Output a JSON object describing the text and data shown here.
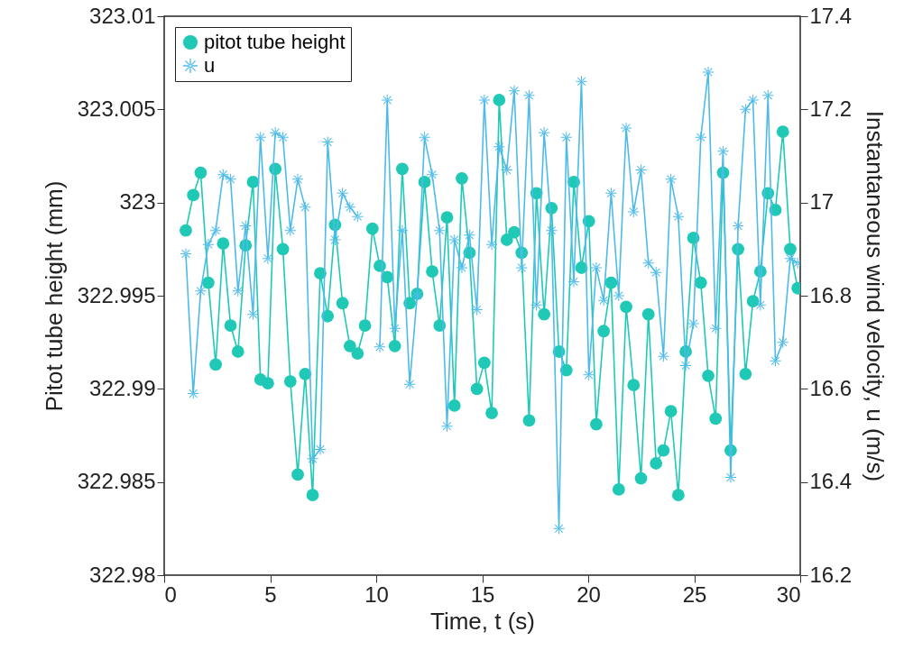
{
  "chart_data": {
    "type": "line",
    "xlabel": "Time, t (s)",
    "ylabel": "Pitot tube height (mm)",
    "y2label": "Instantaneous wind velocity, u (m/s)",
    "xlim": [
      0,
      30
    ],
    "xticks": [
      0,
      5,
      10,
      15,
      20,
      25,
      30
    ],
    "ylim": [
      322.98,
      323.01
    ],
    "yticks": [
      322.98,
      322.985,
      322.99,
      322.995,
      323,
      323.005,
      323.01
    ],
    "y2lim": [
      16.2,
      17.4
    ],
    "y2ticks": [
      16.2,
      16.4,
      16.6,
      16.8,
      17,
      17.2,
      17.4
    ],
    "grid": false,
    "legend": "top left",
    "x": [
      1.02,
      1.37,
      1.72,
      2.08,
      2.43,
      2.78,
      3.13,
      3.48,
      3.84,
      4.19,
      4.54,
      4.89,
      5.24,
      5.6,
      5.95,
      6.3,
      6.65,
      7.0,
      7.36,
      7.71,
      8.06,
      8.41,
      8.76,
      9.12,
      9.47,
      9.82,
      10.17,
      10.52,
      10.88,
      11.23,
      11.58,
      11.93,
      12.28,
      12.64,
      12.99,
      13.34,
      13.69,
      14.04,
      14.4,
      14.75,
      15.1,
      15.45,
      15.8,
      16.16,
      16.51,
      16.86,
      17.21,
      17.56,
      17.92,
      18.27,
      18.62,
      18.97,
      19.32,
      19.68,
      20.03,
      20.38,
      20.73,
      21.08,
      21.44,
      21.79,
      22.14,
      22.49,
      22.84,
      23.2,
      23.55,
      23.9,
      24.25,
      24.6,
      24.96,
      25.31,
      25.66,
      26.01,
      26.36,
      26.72,
      27.07,
      27.42,
      27.77,
      28.12,
      28.48,
      28.83,
      29.18,
      29.53,
      29.88
    ],
    "series": [
      {
        "name": "pitot tube height",
        "color": "#1fc9b5",
        "marker": "circle",
        "values": [
          322.9985,
          323.0004,
          323.0016,
          322.9957,
          322.9913,
          322.9978,
          322.9934,
          322.992,
          322.9977,
          323.0011,
          322.9905,
          322.9903,
          323.0018,
          322.9975,
          322.9904,
          322.9854,
          322.9908,
          322.9843,
          322.9962,
          322.9939,
          322.9988,
          322.9946,
          322.9923,
          322.9919,
          322.9934,
          322.9986,
          322.9966,
          322.996,
          322.9923,
          323.0018,
          322.9946,
          322.9951,
          323.0011,
          322.9963,
          322.9934,
          322.9992,
          322.9891,
          323.0013,
          322.9973,
          322.99,
          322.9914,
          322.9887,
          323.0055,
          322.998,
          322.9984,
          322.9973,
          322.9883,
          323.0005,
          322.994,
          322.9997,
          322.992,
          322.991,
          323.0011,
          322.9965,
          322.999,
          322.9881,
          322.9931,
          322.9957,
          322.9846,
          322.9944,
          322.9902,
          322.9852,
          322.994,
          322.986,
          322.9867,
          322.9888,
          322.9843,
          322.992,
          322.9981,
          322.9957,
          322.9907,
          322.9884,
          323.0016,
          322.9867,
          322.9975,
          322.9908,
          322.9947,
          322.9963,
          323.0005,
          322.9996,
          323.0038,
          322.9975,
          322.9954
        ]
      },
      {
        "name": "u",
        "color": "#4dbbea",
        "marker": "cross",
        "axis": "y2",
        "values": [
          16.89,
          16.59,
          16.81,
          16.91,
          16.94,
          17.06,
          17.05,
          16.81,
          16.95,
          16.76,
          17.14,
          16.88,
          17.15,
          17.14,
          16.94,
          17.05,
          16.99,
          16.45,
          16.47,
          17.13,
          16.92,
          17.02,
          16.99,
          16.97,
          null,
          null,
          16.69,
          17.22,
          16.73,
          16.94,
          16.61,
          16.8,
          17.14,
          17.06,
          16.94,
          16.52,
          16.92,
          16.86,
          16.93,
          16.77,
          17.22,
          16.91,
          17.12,
          17.07,
          17.24,
          16.86,
          17.23,
          16.78,
          17.15,
          16.94,
          16.3,
          17.14,
          16.83,
          17.26,
          16.63,
          16.86,
          16.79,
          17.02,
          16.8,
          17.16,
          16.98,
          17.07,
          16.87,
          16.85,
          16.67,
          17.05,
          16.97,
          16.65,
          16.74,
          17.14,
          17.28,
          16.73,
          17.11,
          16.41,
          16.95,
          17.2,
          17.22,
          16.78,
          17.23,
          16.66,
          16.7,
          16.88,
          16.87
        ]
      }
    ]
  }
}
